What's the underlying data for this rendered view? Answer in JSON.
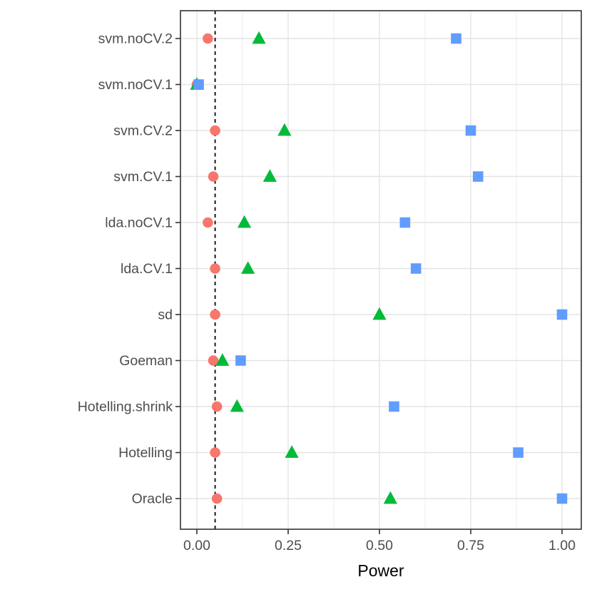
{
  "chart_data": {
    "type": "scatter",
    "title": "",
    "xlabel": "Power",
    "ylabel": "",
    "xlim": [
      0,
      1
    ],
    "x_ticks": [
      "0.00",
      "0.25",
      "0.50",
      "0.75",
      "1.00"
    ],
    "x_tick_values": [
      0,
      0.25,
      0.5,
      0.75,
      1.0
    ],
    "x_minor_gridlines": [
      0.125,
      0.375,
      0.625,
      0.875
    ],
    "grid": true,
    "legend_position": "none",
    "panel_border": true,
    "categories_top_to_bottom": [
      "svm.noCV.2",
      "svm.noCV.1",
      "svm.CV.2",
      "svm.CV.1",
      "lda.noCV.1",
      "lda.CV.1",
      "sd",
      "Goeman",
      "Hotelling.shrink",
      "Hotelling",
      "Oracle"
    ],
    "reference_line": {
      "x": 0.05,
      "style": "dashed",
      "color": "#000000"
    },
    "series": [
      {
        "name": "circle-series",
        "marker": "circle",
        "color": "#F8766D",
        "values": [
          0.03,
          0.0,
          0.05,
          0.045,
          0.03,
          0.05,
          0.05,
          0.045,
          0.055,
          0.05,
          0.055
        ]
      },
      {
        "name": "triangle-series",
        "marker": "triangle",
        "color": "#00BA38",
        "values": [
          0.17,
          0.0,
          0.24,
          0.2,
          0.13,
          0.14,
          0.5,
          0.07,
          0.11,
          0.26,
          0.53
        ]
      },
      {
        "name": "square-series",
        "marker": "square",
        "color": "#619CFF",
        "values": [
          0.71,
          0.005,
          0.75,
          0.77,
          0.57,
          0.6,
          1.0,
          0.12,
          0.54,
          0.88,
          1.0
        ]
      }
    ],
    "colors": {
      "grid_major": "#E4E4E4",
      "grid_minor": "#EDEDED",
      "panel_bg": "#FFFFFF",
      "panel_border": "#333333",
      "tick_mark": "#333333",
      "axis_text": "#4D4D4D",
      "axis_title": "#000000"
    }
  }
}
